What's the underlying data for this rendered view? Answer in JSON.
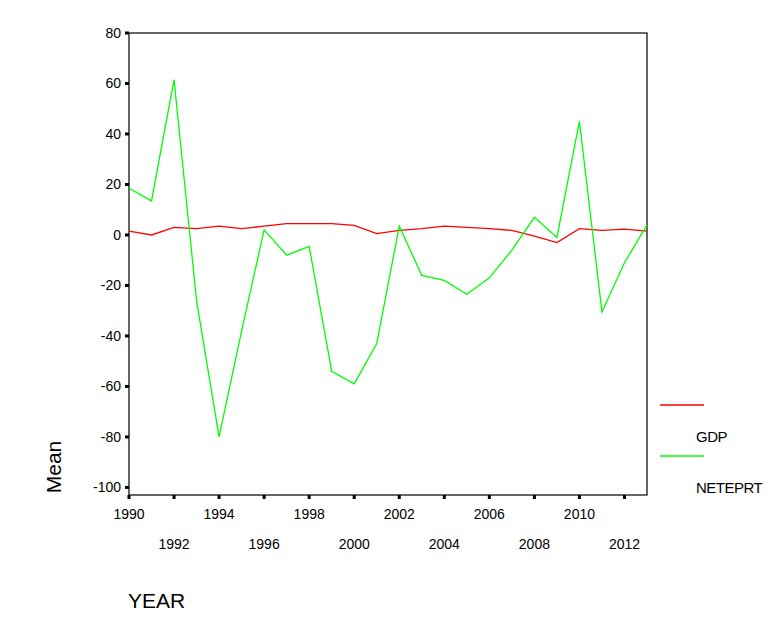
{
  "chart_data": {
    "type": "line",
    "x_label": "YEAR",
    "y_label": "Mean",
    "x": [
      1990,
      1991,
      1992,
      1993,
      1994,
      1995,
      1996,
      1997,
      1998,
      1999,
      2000,
      2001,
      2002,
      2003,
      2004,
      2005,
      2006,
      2007,
      2008,
      2009,
      2010,
      2011,
      2012,
      2013
    ],
    "series": [
      {
        "name": "GDP",
        "color": "#ff0000",
        "values": [
          1.5,
          0,
          3,
          2.5,
          3.5,
          2.5,
          3.5,
          4.5,
          4.5,
          4.5,
          3.8,
          0.5,
          1.8,
          2.5,
          3.5,
          3,
          2.5,
          1.8,
          -0.5,
          -3,
          2.5,
          1.8,
          2.3,
          1.5
        ]
      },
      {
        "name": "NETEPRT",
        "color": "#00ff00",
        "values": [
          18.5,
          13.5,
          61.5,
          -26,
          -80,
          -38,
          2,
          -8,
          -4.5,
          -54,
          -59,
          -43,
          3.5,
          -16,
          -18,
          -23.5,
          -17,
          -6,
          7,
          -1,
          45,
          -30.5,
          -11,
          4
        ]
      }
    ],
    "xlim": [
      1990,
      2013
    ],
    "ylim": [
      -103,
      80
    ],
    "xticks": [
      1990,
      1992,
      1994,
      1996,
      1998,
      2000,
      2002,
      2004,
      2006,
      2008,
      2010,
      2012
    ],
    "yticks": [
      -100,
      -80,
      -60,
      -40,
      -20,
      0,
      20,
      40,
      60,
      80
    ],
    "grid": false,
    "legend": "right"
  }
}
